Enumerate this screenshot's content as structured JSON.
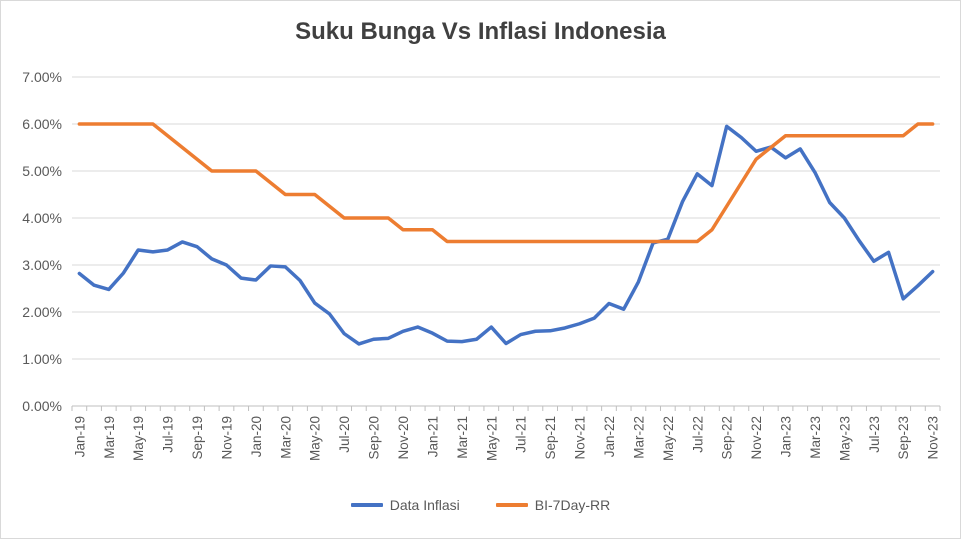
{
  "chart_data": {
    "type": "line",
    "title": "Suku Bunga Vs Inflasi Indonesia",
    "xlabel": "",
    "ylabel": "",
    "ylim": [
      0,
      0.07
    ],
    "y_ticks": [
      "0.00%",
      "1.00%",
      "2.00%",
      "3.00%",
      "4.00%",
      "5.00%",
      "6.00%",
      "7.00%"
    ],
    "grid": true,
    "legend_position": "bottom",
    "x": [
      "Jan-19",
      "Feb-19",
      "Mar-19",
      "Apr-19",
      "May-19",
      "Jun-19",
      "Jul-19",
      "Aug-19",
      "Sep-19",
      "Oct-19",
      "Nov-19",
      "Dec-19",
      "Jan-20",
      "Feb-20",
      "Mar-20",
      "Apr-20",
      "May-20",
      "Jun-20",
      "Jul-20",
      "Aug-20",
      "Sep-20",
      "Oct-20",
      "Nov-20",
      "Dec-20",
      "Jan-21",
      "Feb-21",
      "Mar-21",
      "Apr-21",
      "May-21",
      "Jun-21",
      "Jul-21",
      "Aug-21",
      "Sep-21",
      "Oct-21",
      "Nov-21",
      "Dec-21",
      "Jan-22",
      "Feb-22",
      "Mar-22",
      "Apr-22",
      "May-22",
      "Jun-22",
      "Jul-22",
      "Aug-22",
      "Sep-22",
      "Oct-22",
      "Nov-22",
      "Dec-22",
      "Jan-23",
      "Feb-23",
      "Mar-23",
      "Apr-23",
      "May-23",
      "Jun-23",
      "Jul-23",
      "Aug-23",
      "Sep-23",
      "Oct-23",
      "Nov-23"
    ],
    "x_tick_labels": [
      "Jan-19",
      "Mar-19",
      "May-19",
      "Jul-19",
      "Sep-19",
      "Nov-19",
      "Jan-20",
      "Mar-20",
      "May-20",
      "Jul-20",
      "Sep-20",
      "Nov-20",
      "Jan-21",
      "Mar-21",
      "May-21",
      "Jul-21",
      "Sep-21",
      "Nov-21",
      "Jan-22",
      "Mar-22",
      "May-22",
      "Jul-22",
      "Sep-22",
      "Nov-22",
      "Jan-23",
      "Mar-23",
      "May-23",
      "Jul-23",
      "Sep-23",
      "Nov-23"
    ],
    "series": [
      {
        "name": "Data Inflasi",
        "color": "#4472c4",
        "values": [
          0.0282,
          0.0257,
          0.0248,
          0.0283,
          0.0332,
          0.0328,
          0.0332,
          0.0349,
          0.0339,
          0.0313,
          0.03,
          0.0272,
          0.0268,
          0.0298,
          0.0296,
          0.0267,
          0.0219,
          0.0196,
          0.0154,
          0.0132,
          0.0142,
          0.0144,
          0.0159,
          0.0168,
          0.0155,
          0.0138,
          0.0137,
          0.0142,
          0.0168,
          0.0133,
          0.0152,
          0.0159,
          0.016,
          0.0166,
          0.0175,
          0.0187,
          0.0218,
          0.0206,
          0.0264,
          0.0347,
          0.0355,
          0.0435,
          0.0494,
          0.0469,
          0.0595,
          0.0571,
          0.0542,
          0.0551,
          0.0528,
          0.0547,
          0.0497,
          0.0433,
          0.04,
          0.0352,
          0.0308,
          0.0327,
          0.0228,
          0.0256,
          0.0286
        ]
      },
      {
        "name": "BI-7Day-RR",
        "color": "#ed7d31",
        "values": [
          0.06,
          0.06,
          0.06,
          0.06,
          0.06,
          0.06,
          0.0575,
          0.055,
          0.0525,
          0.05,
          0.05,
          0.05,
          0.05,
          0.0475,
          0.045,
          0.045,
          0.045,
          0.0425,
          0.04,
          0.04,
          0.04,
          0.04,
          0.0375,
          0.0375,
          0.0375,
          0.035,
          0.035,
          0.035,
          0.035,
          0.035,
          0.035,
          0.035,
          0.035,
          0.035,
          0.035,
          0.035,
          0.035,
          0.035,
          0.035,
          0.035,
          0.035,
          0.035,
          0.035,
          0.0375,
          0.0425,
          0.0475,
          0.0525,
          0.055,
          0.0575,
          0.0575,
          0.0575,
          0.0575,
          0.0575,
          0.0575,
          0.0575,
          0.0575,
          0.0575,
          0.06,
          0.06
        ]
      }
    ]
  }
}
